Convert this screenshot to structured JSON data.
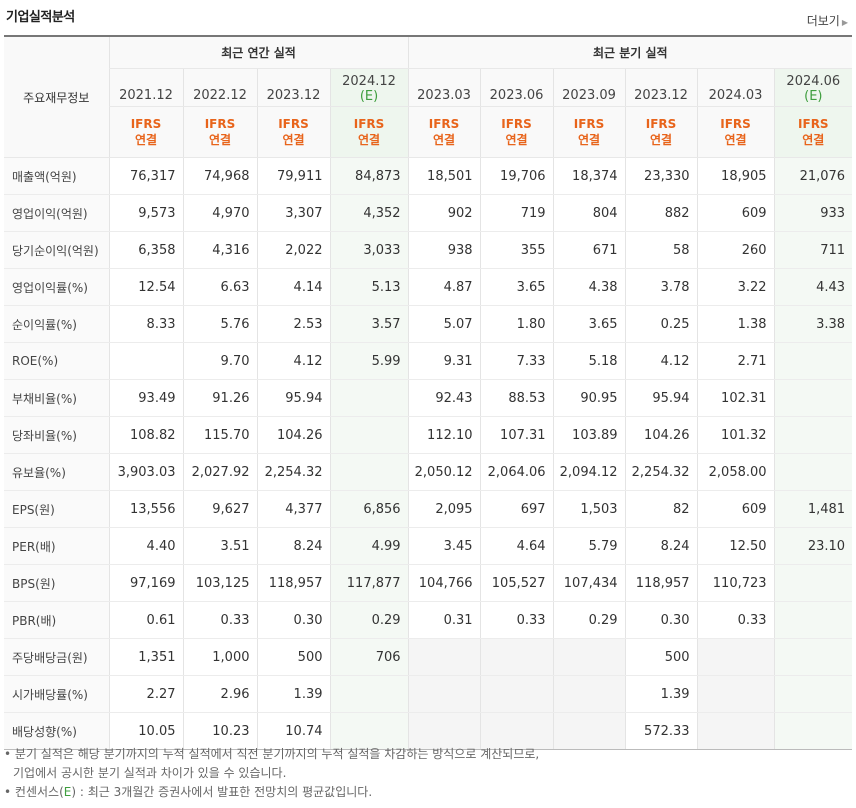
{
  "header": {
    "title": "기업실적분석",
    "more_label": "더보기"
  },
  "table": {
    "corner_label": "주요재무정보",
    "groups": [
      "최근 연간 실적",
      "최근 분기 실적"
    ],
    "periods": [
      "2021.12",
      "2022.12",
      "2023.12",
      "2024.12",
      "2023.03",
      "2023.06",
      "2023.09",
      "2023.12",
      "2024.03",
      "2024.06"
    ],
    "estimate_mark": "(E)",
    "ifrs_top": "IFRS",
    "ifrs_bottom": "연결",
    "rows": [
      {
        "label": "매출액(억원)",
        "cells": [
          "76,317",
          "74,968",
          "79,911",
          "84,873",
          "18,501",
          "19,706",
          "18,374",
          "23,330",
          "18,905",
          "21,076"
        ]
      },
      {
        "label": "영업이익(억원)",
        "cells": [
          "9,573",
          "4,970",
          "3,307",
          "4,352",
          "902",
          "719",
          "804",
          "882",
          "609",
          "933"
        ]
      },
      {
        "label": "당기순이익(억원)",
        "cells": [
          "6,358",
          "4,316",
          "2,022",
          "3,033",
          "938",
          "355",
          "671",
          "58",
          "260",
          "711"
        ]
      },
      {
        "label": "영업이익률(%)",
        "cells": [
          "12.54",
          "6.63",
          "4.14",
          "5.13",
          "4.87",
          "3.65",
          "4.38",
          "3.78",
          "3.22",
          "4.43"
        ]
      },
      {
        "label": "순이익률(%)",
        "cells": [
          "8.33",
          "5.76",
          "2.53",
          "3.57",
          "5.07",
          "1.80",
          "3.65",
          "0.25",
          "1.38",
          "3.38"
        ]
      },
      {
        "label": "ROE(%)",
        "cells": [
          "",
          "9.70",
          "4.12",
          "5.99",
          "9.31",
          "7.33",
          "5.18",
          "4.12",
          "2.71",
          ""
        ]
      },
      {
        "label": "부채비율(%)",
        "cells": [
          "93.49",
          "91.26",
          "95.94",
          "",
          "92.43",
          "88.53",
          "90.95",
          "95.94",
          "102.31",
          ""
        ]
      },
      {
        "label": "당좌비율(%)",
        "cells": [
          "108.82",
          "115.70",
          "104.26",
          "",
          "112.10",
          "107.31",
          "103.89",
          "104.26",
          "101.32",
          ""
        ]
      },
      {
        "label": "유보율(%)",
        "cells": [
          "3,903.03",
          "2,027.92",
          "2,254.32",
          "",
          "2,050.12",
          "2,064.06",
          "2,094.12",
          "2,254.32",
          "2,058.00",
          ""
        ]
      },
      {
        "label": "EPS(원)",
        "cells": [
          "13,556",
          "9,627",
          "4,377",
          "6,856",
          "2,095",
          "697",
          "1,503",
          "82",
          "609",
          "1,481"
        ]
      },
      {
        "label": "PER(배)",
        "cells": [
          "4.40",
          "3.51",
          "8.24",
          "4.99",
          "3.45",
          "4.64",
          "5.79",
          "8.24",
          "12.50",
          "23.10"
        ]
      },
      {
        "label": "BPS(원)",
        "cells": [
          "97,169",
          "103,125",
          "118,957",
          "117,877",
          "104,766",
          "105,527",
          "107,434",
          "118,957",
          "110,723",
          ""
        ]
      },
      {
        "label": "PBR(배)",
        "cells": [
          "0.61",
          "0.33",
          "0.30",
          "0.29",
          "0.31",
          "0.33",
          "0.29",
          "0.30",
          "0.33",
          ""
        ]
      },
      {
        "label": "주당배당금(원)",
        "cells": [
          "1,351",
          "1,000",
          "500",
          "706",
          "",
          "",
          "",
          "500",
          "",
          ""
        ]
      },
      {
        "label": "시가배당률(%)",
        "cells": [
          "2.27",
          "2.96",
          "1.39",
          "",
          "",
          "",
          "",
          "1.39",
          "",
          ""
        ]
      },
      {
        "label": "배당성향(%)",
        "cells": [
          "10.05",
          "10.23",
          "10.74",
          "",
          "",
          "",
          "",
          "572.33",
          "",
          ""
        ]
      }
    ]
  },
  "notes": {
    "line1": "분기 실적은 해당 분기까지의 누적 실적에서 직전 분기까지의 누적 실적을 차감하는 방식으로 계산되므로,",
    "line2": "기업에서 공시한 분기 실적과 차이가 있을 수 있습니다.",
    "line3_prefix": "컨센서스(",
    "line3_mark": "E",
    "line3_suffix": ") : 최근 3개월간 증권사에서 발표한 전망치의 평균값입니다."
  }
}
